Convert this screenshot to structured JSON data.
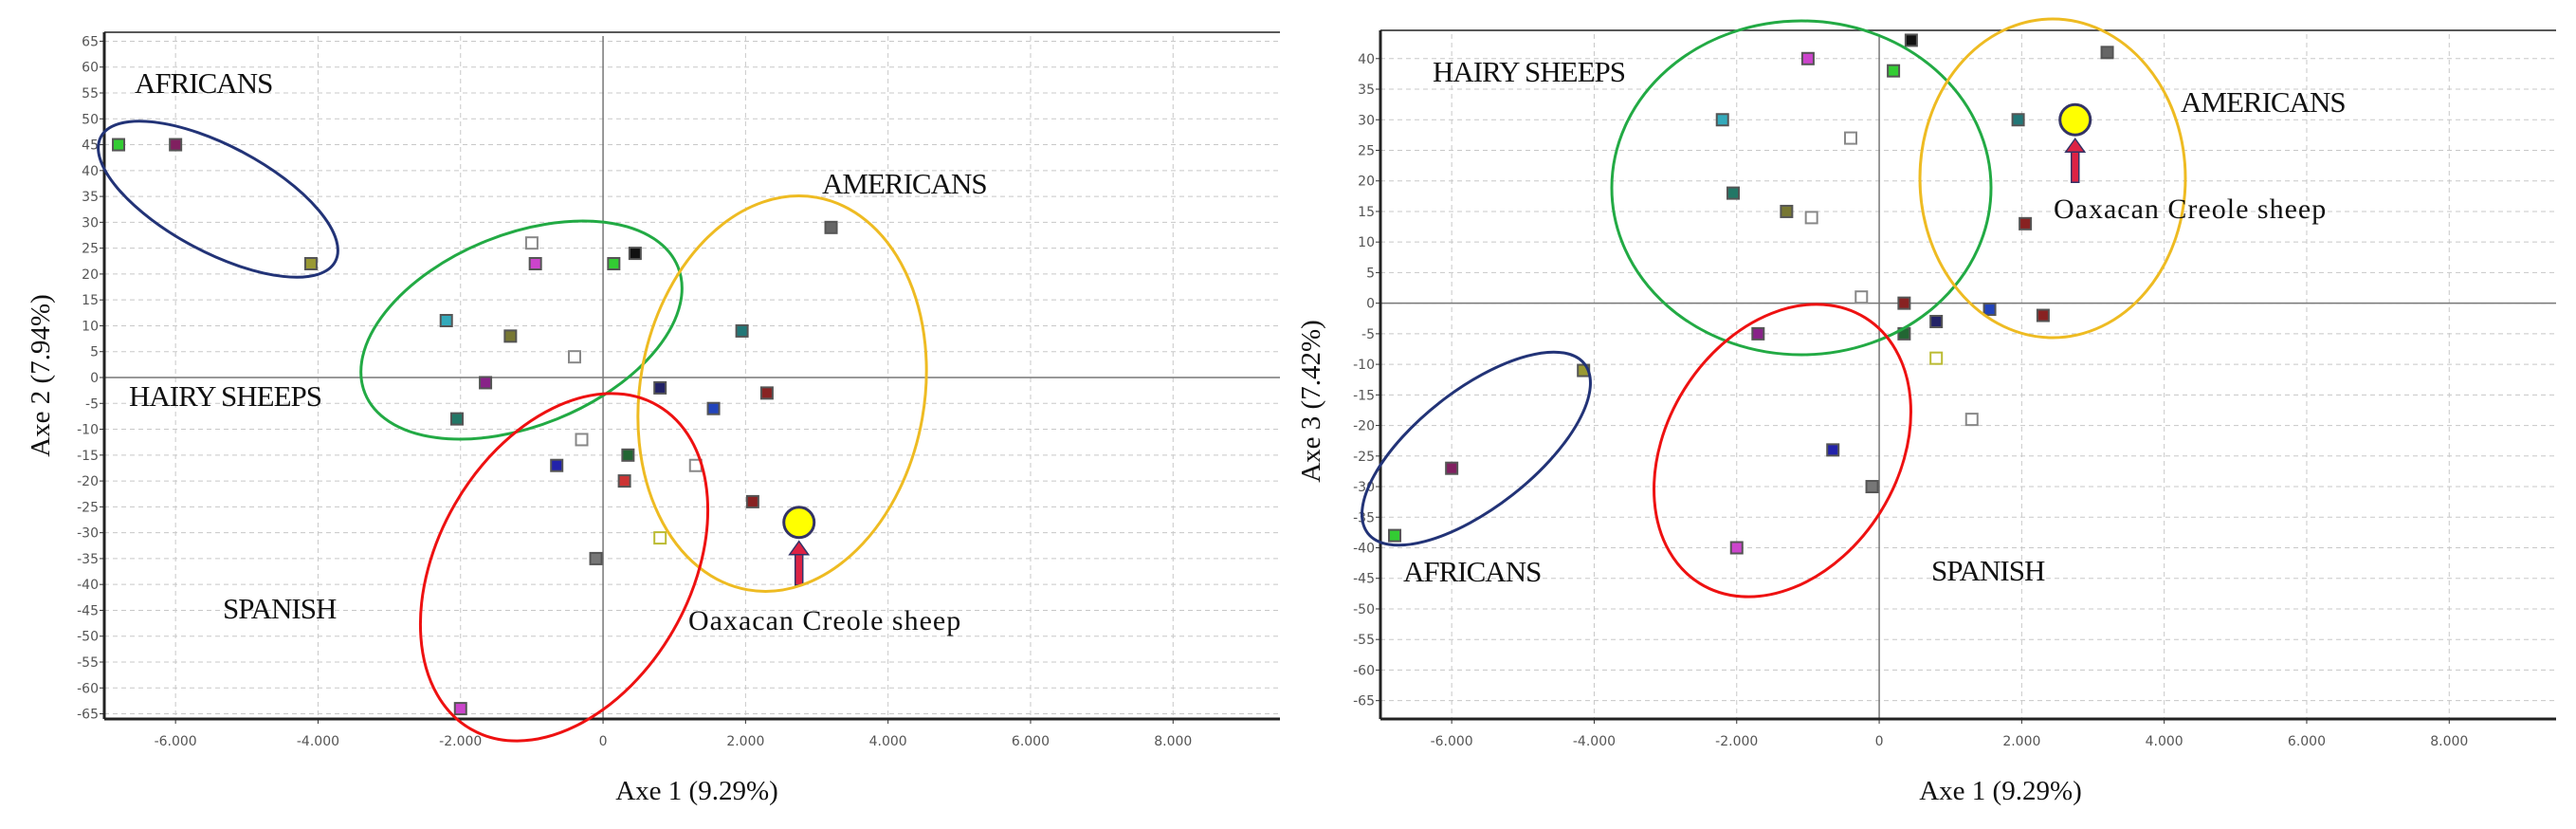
{
  "chart_data": [
    {
      "type": "scatter",
      "xlabel": "Axe 1 (9.29%)",
      "ylabel": "Axe 2 (7.94%)",
      "xlim": [
        -7000,
        9500
      ],
      "ylim": [
        -66,
        66
      ],
      "xticks": [
        -6000,
        -4000,
        -2000,
        0,
        2000,
        4000,
        6000,
        8000
      ],
      "xtick_labels": [
        "-6.000",
        "-4.000",
        "-2.000",
        "0",
        "2.000",
        "4.000",
        "6.000",
        "8.000"
      ],
      "yticks": [
        65,
        60,
        55,
        50,
        45,
        40,
        35,
        30,
        25,
        20,
        15,
        10,
        5,
        0,
        -5,
        -10,
        -15,
        -20,
        -25,
        -30,
        -35,
        -40,
        -45,
        -50,
        -55,
        -60,
        -65
      ],
      "grid": true,
      "points": [
        {
          "x": -6800,
          "y": 45,
          "color": "#33cc33",
          "fill": true
        },
        {
          "x": -6000,
          "y": 45,
          "color": "#802060",
          "fill": true
        },
        {
          "x": -4100,
          "y": 22,
          "color": "#999933",
          "fill": true
        },
        {
          "x": -2200,
          "y": 11,
          "color": "#33aabb",
          "fill": true
        },
        {
          "x": -2050,
          "y": -8,
          "color": "#227766",
          "fill": true
        },
        {
          "x": -1650,
          "y": -1,
          "color": "#882288",
          "fill": true
        },
        {
          "x": -1300,
          "y": 8,
          "color": "#777733",
          "fill": true
        },
        {
          "x": -1000,
          "y": 26,
          "color": "#888888",
          "fill": false
        },
        {
          "x": -950,
          "y": 22,
          "color": "#cc44cc",
          "fill": true
        },
        {
          "x": -400,
          "y": 4,
          "color": "#888888",
          "fill": false
        },
        {
          "x": 150,
          "y": 22,
          "color": "#33cc33",
          "fill": true
        },
        {
          "x": 450,
          "y": 24,
          "color": "#111111",
          "fill": true
        },
        {
          "x": 800,
          "y": -2,
          "color": "#222266",
          "fill": true
        },
        {
          "x": 1950,
          "y": 9,
          "color": "#227777",
          "fill": true
        },
        {
          "x": 3200,
          "y": 29,
          "color": "#666666",
          "fill": true
        },
        {
          "x": 2300,
          "y": -3,
          "color": "#882222",
          "fill": true
        },
        {
          "x": 1550,
          "y": -6,
          "color": "#2244bb",
          "fill": true
        },
        {
          "x": -650,
          "y": -17,
          "color": "#2222aa",
          "fill": true
        },
        {
          "x": -300,
          "y": -12,
          "color": "#888888",
          "fill": false
        },
        {
          "x": 350,
          "y": -15,
          "color": "#226633",
          "fill": true
        },
        {
          "x": 300,
          "y": -20,
          "color": "#cc3333",
          "fill": true
        },
        {
          "x": 1300,
          "y": -17,
          "color": "#888888",
          "fill": false
        },
        {
          "x": 2100,
          "y": -24,
          "color": "#882222",
          "fill": true
        },
        {
          "x": 800,
          "y": -31,
          "color": "#bbbb33",
          "fill": false
        },
        {
          "x": -100,
          "y": -35,
          "color": "#777777",
          "fill": true
        },
        {
          "x": -2000,
          "y": -64,
          "color": "#cc44cc",
          "fill": true
        }
      ],
      "highlight": {
        "x": 2750,
        "y": -28,
        "color": "#ffff00",
        "label": "Oaxacan Creole sheep"
      },
      "groups": [
        {
          "label": "AFRICANS",
          "color": "#223377"
        },
        {
          "label": "HAIRY SHEEPS",
          "color": "#22aa44"
        },
        {
          "label": "AMERICANS",
          "color": "#eebb22"
        },
        {
          "label": "SPANISH",
          "color": "#ee1111"
        }
      ]
    },
    {
      "type": "scatter",
      "xlabel": "Axe 1 (9.29%)",
      "ylabel": "Axe 3 (7.42%)",
      "xlim": [
        -7000,
        9500
      ],
      "ylim": [
        -68,
        44
      ],
      "xticks": [
        -6000,
        -4000,
        -2000,
        0,
        2000,
        4000,
        6000,
        8000
      ],
      "xtick_labels": [
        "-6.000",
        "-4.000",
        "-2.000",
        "0",
        "2.000",
        "4.000",
        "6.000",
        "8.000"
      ],
      "yticks": [
        40,
        35,
        30,
        25,
        20,
        15,
        10,
        5,
        0,
        -5,
        -10,
        -15,
        -20,
        -25,
        -30,
        -35,
        -40,
        -45,
        -50,
        -55,
        -60,
        -65
      ],
      "grid": true,
      "points": [
        {
          "x": -6800,
          "y": -38,
          "color": "#33cc33",
          "fill": true
        },
        {
          "x": -6000,
          "y": -27,
          "color": "#802060",
          "fill": true
        },
        {
          "x": -4150,
          "y": -11,
          "color": "#999933",
          "fill": true
        },
        {
          "x": -2200,
          "y": 30,
          "color": "#33aabb",
          "fill": true
        },
        {
          "x": -2050,
          "y": 18,
          "color": "#227766",
          "fill": true
        },
        {
          "x": -1300,
          "y": 15,
          "color": "#777733",
          "fill": true
        },
        {
          "x": -950,
          "y": 14,
          "color": "#888888",
          "fill": false
        },
        {
          "x": -1000,
          "y": 40,
          "color": "#cc44cc",
          "fill": true
        },
        {
          "x": -400,
          "y": 27,
          "color": "#888888",
          "fill": false
        },
        {
          "x": 200,
          "y": 38,
          "color": "#33cc33",
          "fill": true
        },
        {
          "x": 450,
          "y": 43,
          "color": "#111111",
          "fill": true
        },
        {
          "x": 1950,
          "y": 30,
          "color": "#227777",
          "fill": true
        },
        {
          "x": 3200,
          "y": 41,
          "color": "#666666",
          "fill": true
        },
        {
          "x": 2050,
          "y": 13,
          "color": "#882222",
          "fill": true
        },
        {
          "x": -1700,
          "y": -5,
          "color": "#882288",
          "fill": true
        },
        {
          "x": -250,
          "y": 1,
          "color": "#888888",
          "fill": false
        },
        {
          "x": 350,
          "y": 0,
          "color": "#882222",
          "fill": true
        },
        {
          "x": 350,
          "y": -5,
          "color": "#226633",
          "fill": true
        },
        {
          "x": 800,
          "y": -3,
          "color": "#222266",
          "fill": true
        },
        {
          "x": 1550,
          "y": -1,
          "color": "#2244bb",
          "fill": true
        },
        {
          "x": 2300,
          "y": -2,
          "color": "#882222",
          "fill": true
        },
        {
          "x": 800,
          "y": -9,
          "color": "#bbbb33",
          "fill": false
        },
        {
          "x": -650,
          "y": -24,
          "color": "#2222aa",
          "fill": true
        },
        {
          "x": 1300,
          "y": -19,
          "color": "#888888",
          "fill": false
        },
        {
          "x": -100,
          "y": -30,
          "color": "#777777",
          "fill": true
        },
        {
          "x": -2000,
          "y": -40,
          "color": "#cc44cc",
          "fill": true
        }
      ],
      "highlight": {
        "x": 2750,
        "y": 30,
        "color": "#ffff00",
        "label": "Oaxacan Creole sheep"
      },
      "groups": [
        {
          "label": "HAIRY SHEEPS",
          "color": "#22aa44"
        },
        {
          "label": "AMERICANS",
          "color": "#eebb22"
        },
        {
          "label": "AFRICANS",
          "color": "#223377"
        },
        {
          "label": "SPANISH",
          "color": "#ee1111"
        }
      ]
    }
  ]
}
